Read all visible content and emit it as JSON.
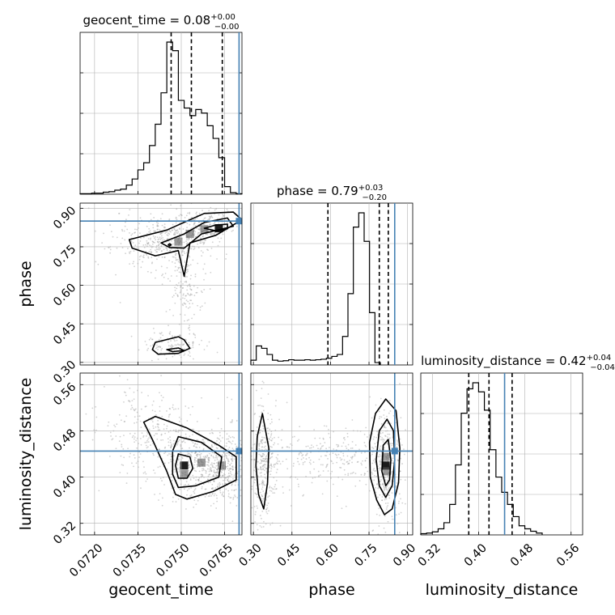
{
  "chart_data": {
    "type": "corner",
    "colors": {
      "line": "#000000",
      "truth": "#4682b4",
      "grid": "#b0b0b0",
      "samples": "#9a9a9a"
    },
    "parameters": [
      {
        "name": "geocent_time",
        "axis_label": "geocent_time",
        "title_text": "geocent_time = 0.08",
        "title_sup": "+0.00",
        "title_sub": "−0.00",
        "range": [
          0.0715,
          0.0771
        ],
        "ticks": [
          0.072,
          0.0735,
          0.075,
          0.0765
        ],
        "tick_labels": [
          "0.0720",
          "0.0735",
          "0.0750",
          "0.0765"
        ],
        "truth": 0.077,
        "quantiles": [
          0.07465,
          0.07535,
          0.07642
        ],
        "hist_edges_start": 0.0715,
        "hist_bin_width": 0.0002,
        "hist_counts": [
          1,
          1,
          2,
          2,
          4,
          5,
          8,
          10,
          18,
          30,
          48,
          62,
          96,
          138,
          200,
          300,
          283,
          185,
          170,
          155,
          167,
          160,
          135,
          110,
          72,
          15,
          3,
          1
        ]
      },
      {
        "name": "phase",
        "axis_label": "phase",
        "title_text": "phase = 0.79",
        "title_sup": "+0.03",
        "title_sub": "−0.20",
        "range": [
          0.29,
          0.92
        ],
        "ticks": [
          0.3,
          0.45,
          0.6,
          0.75,
          0.9
        ],
        "tick_labels": [
          "0.30",
          "0.45",
          "0.60",
          "0.75",
          "0.90"
        ],
        "truth": 0.85,
        "quantiles": [
          0.59,
          0.79,
          0.825
        ],
        "hist_edges_start": 0.29,
        "hist_bin_width": 0.021,
        "hist_counts": [
          10,
          40,
          35,
          22,
          10,
          8,
          9,
          11,
          10,
          10,
          11,
          10,
          11,
          12,
          14,
          18,
          22,
          60,
          150,
          290,
          320,
          260,
          110,
          5
        ]
      },
      {
        "name": "luminosity_distance",
        "axis_label": "luminosity_distance",
        "title_text": "luminosity_distance = 0.42",
        "title_sup": "+0.04",
        "title_sub": "−0.04",
        "range": [
          0.3,
          0.58
        ],
        "ticks": [
          0.32,
          0.4,
          0.48,
          0.56
        ],
        "tick_labels": [
          "0.32",
          "0.40",
          "0.48",
          "0.56"
        ],
        "truth": 0.445,
        "quantiles": [
          0.383,
          0.418,
          0.458
        ],
        "hist_edges_start": 0.3,
        "hist_bin_width": 0.01,
        "hist_counts": [
          2,
          3,
          5,
          10,
          20,
          50,
          115,
          200,
          240,
          250,
          235,
          205,
          140,
          95,
          70,
          50,
          30,
          15,
          10,
          6,
          3
        ]
      }
    ],
    "contours": [
      {
        "x": "geocent_time",
        "y": "phase",
        "levels": [
          [
            [
              0.0732,
              0.778
            ],
            [
              0.0745,
              0.815
            ],
            [
              0.0752,
              0.85
            ],
            [
              0.0758,
              0.88
            ],
            [
              0.0768,
              0.885
            ],
            [
              0.0771,
              0.855
            ],
            [
              0.0762,
              0.795
            ],
            [
              0.0753,
              0.765
            ],
            [
              0.0751,
              0.635
            ],
            [
              0.0749,
              0.735
            ],
            [
              0.0741,
              0.715
            ],
            [
              0.0733,
              0.745
            ]
          ],
          [
            [
              0.0743,
              0.765
            ],
            [
              0.0751,
              0.8
            ],
            [
              0.0758,
              0.845
            ],
            [
              0.0766,
              0.862
            ],
            [
              0.0768,
              0.83
            ],
            [
              0.0757,
              0.8
            ],
            [
              0.0751,
              0.745
            ],
            [
              0.0746,
              0.747
            ]
          ],
          [
            [
              0.0758,
              0.822
            ],
            [
              0.0762,
              0.835
            ],
            [
              0.0766,
              0.838
            ],
            [
              0.0766,
              0.82
            ],
            [
              0.0762,
              0.812
            ]
          ],
          [
            [
              0.07455,
              0.758
            ],
            [
              0.0746,
              0.762
            ],
            [
              0.07465,
              0.758
            ],
            [
              0.0746,
              0.753
            ]
          ],
          [
            [
              0.0741,
              0.378
            ],
            [
              0.0749,
              0.4
            ],
            [
              0.0751,
              0.388
            ],
            [
              0.0753,
              0.355
            ],
            [
              0.0749,
              0.335
            ],
            [
              0.0742,
              0.332
            ],
            [
              0.074,
              0.35
            ]
          ],
          [
            [
              0.0745,
              0.35
            ],
            [
              0.0749,
              0.356
            ],
            [
              0.0751,
              0.346
            ],
            [
              0.0747,
              0.342
            ]
          ]
        ],
        "peaks": [
          [
            0.0763,
            0.822
          ],
          [
            0.0758,
            0.818
          ],
          [
            0.0749,
            0.77
          ],
          [
            0.0753,
            0.8
          ]
        ]
      },
      {
        "x": "geocent_time",
        "y": "luminosity_distance",
        "levels": [
          [
            [
              0.0741,
              0.505
            ],
            [
              0.0752,
              0.485
            ],
            [
              0.0763,
              0.455
            ],
            [
              0.0769,
              0.435
            ],
            [
              0.0769,
              0.395
            ],
            [
              0.0761,
              0.375
            ],
            [
              0.0752,
              0.362
            ],
            [
              0.0748,
              0.37
            ],
            [
              0.0745,
              0.41
            ],
            [
              0.074,
              0.465
            ],
            [
              0.0737,
              0.495
            ]
          ],
          [
            [
              0.0749,
              0.47
            ],
            [
              0.0757,
              0.46
            ],
            [
              0.0764,
              0.435
            ],
            [
              0.0763,
              0.4
            ],
            [
              0.0755,
              0.385
            ],
            [
              0.0749,
              0.382
            ],
            [
              0.0747,
              0.405
            ],
            [
              0.0747,
              0.445
            ]
          ],
          [
            [
              0.0749,
              0.44
            ],
            [
              0.0753,
              0.435
            ],
            [
              0.0754,
              0.415
            ],
            [
              0.0752,
              0.398
            ],
            [
              0.0749,
              0.398
            ],
            [
              0.0748,
              0.42
            ]
          ]
        ],
        "peaks": [
          [
            0.0751,
            0.42
          ],
          [
            0.0757,
            0.425
          ],
          [
            0.0764,
            0.42
          ],
          [
            0.0751,
            0.405
          ]
        ]
      },
      {
        "x": "phase",
        "y": "luminosity_distance",
        "levels": [
          [
            [
              0.775,
              0.51
            ],
            [
              0.815,
              0.535
            ],
            [
              0.855,
              0.515
            ],
            [
              0.87,
              0.45
            ],
            [
              0.865,
              0.39
            ],
            [
              0.84,
              0.345
            ],
            [
              0.81,
              0.335
            ],
            [
              0.78,
              0.36
            ],
            [
              0.755,
              0.4
            ],
            [
              0.752,
              0.46
            ]
          ],
          [
            [
              0.79,
              0.48
            ],
            [
              0.82,
              0.5
            ],
            [
              0.845,
              0.48
            ],
            [
              0.85,
              0.43
            ],
            [
              0.84,
              0.385
            ],
            [
              0.815,
              0.365
            ],
            [
              0.79,
              0.385
            ],
            [
              0.778,
              0.43
            ]
          ],
          [
            [
              0.805,
              0.455
            ],
            [
              0.825,
              0.465
            ],
            [
              0.835,
              0.43
            ],
            [
              0.83,
              0.395
            ],
            [
              0.815,
              0.385
            ],
            [
              0.8,
              0.41
            ]
          ],
          [
            [
              0.315,
              0.47
            ],
            [
              0.335,
              0.51
            ],
            [
              0.36,
              0.45
            ],
            [
              0.355,
              0.39
            ],
            [
              0.34,
              0.345
            ],
            [
              0.32,
              0.37
            ],
            [
              0.31,
              0.42
            ]
          ]
        ],
        "peaks": [
          [
            0.815,
            0.42
          ],
          [
            0.815,
            0.435
          ],
          [
            0.82,
            0.41
          ]
        ]
      }
    ]
  }
}
